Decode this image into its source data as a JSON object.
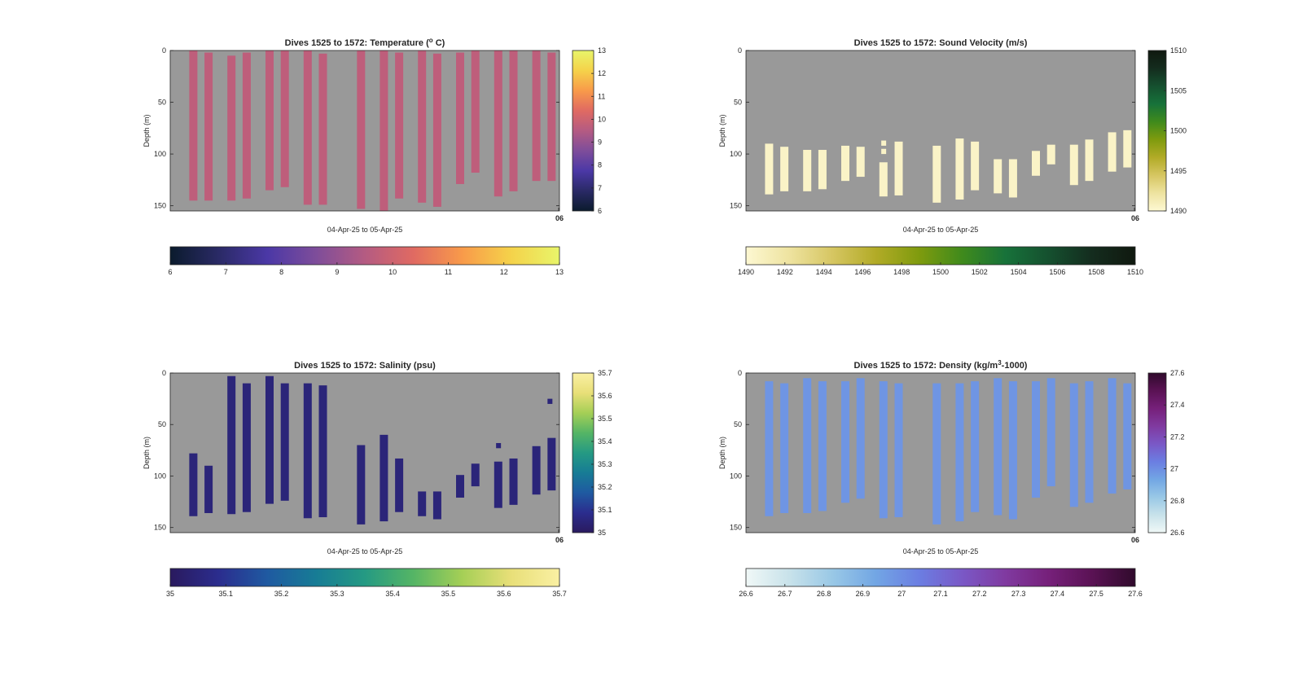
{
  "figure": {
    "background": "#ffffff",
    "plot_background": "#999999"
  },
  "chart_data": [
    {
      "type": "heatmap",
      "title": "Dives 1525 to 1572: Temperature (",
      "title_sup": "o",
      "title_tail": " C)",
      "ylabel": "Depth (m)",
      "xlabel": "04-Apr-25 to 05-Apr-25",
      "x_end_tick": "06",
      "ylim": [
        155,
        0
      ],
      "yticks": [
        0,
        50,
        100,
        150
      ],
      "clim": [
        6,
        13
      ],
      "cb_vertical_ticks": [
        "6",
        "7",
        "8",
        "9",
        "10",
        "11",
        "12",
        "13"
      ],
      "cb_horizontal_ticks": [
        "6",
        "7",
        "8",
        "9",
        "10",
        "11",
        "12",
        "13"
      ],
      "colormap": [
        "#0b1b2d",
        "#2a2a66",
        "#4b38a6",
        "#7e4d9a",
        "#b45b82",
        "#e06a62",
        "#f89a4a",
        "#f5d24a",
        "#e8f56a"
      ],
      "grid": false,
      "dives": [
        {
          "x": 0.05,
          "top": 0,
          "bottom": 145,
          "value": 9.7
        },
        {
          "x": 0.09,
          "top": 2,
          "bottom": 145,
          "value": 9.7
        },
        {
          "x": 0.15,
          "top": 5,
          "bottom": 145,
          "value": 9.7
        },
        {
          "x": 0.19,
          "top": 2,
          "bottom": 143,
          "value": 9.7
        },
        {
          "x": 0.25,
          "top": 0,
          "bottom": 135,
          "value": 9.7
        },
        {
          "x": 0.29,
          "top": 0,
          "bottom": 132,
          "value": 9.7
        },
        {
          "x": 0.35,
          "top": 0,
          "bottom": 149,
          "value": 9.7
        },
        {
          "x": 0.39,
          "top": 3,
          "bottom": 149,
          "value": 9.7
        },
        {
          "x": 0.49,
          "top": 0,
          "bottom": 153,
          "value": 9.7
        },
        {
          "x": 0.55,
          "top": 0,
          "bottom": 155,
          "value": 9.7
        },
        {
          "x": 0.59,
          "top": 2,
          "bottom": 143,
          "value": 9.7
        },
        {
          "x": 0.65,
          "top": 0,
          "bottom": 147,
          "value": 9.7
        },
        {
          "x": 0.69,
          "top": 3,
          "bottom": 151,
          "value": 9.7
        },
        {
          "x": 0.75,
          "top": 2,
          "bottom": 129,
          "value": 9.7
        },
        {
          "x": 0.79,
          "top": 0,
          "bottom": 118,
          "value": 9.7
        },
        {
          "x": 0.85,
          "top": 0,
          "bottom": 141,
          "value": 9.7
        },
        {
          "x": 0.89,
          "top": 0,
          "bottom": 136,
          "value": 9.7
        },
        {
          "x": 0.95,
          "top": 0,
          "bottom": 126,
          "value": 9.7
        },
        {
          "x": 0.99,
          "top": 2,
          "bottom": 126,
          "value": 9.7
        }
      ]
    },
    {
      "type": "heatmap",
      "title": "Dives 1525 to 1572: Sound Velocity (m/s)",
      "ylabel": "Depth (m)",
      "xlabel": "04-Apr-25 to 05-Apr-25",
      "x_end_tick": "06",
      "ylim": [
        155,
        0
      ],
      "yticks": [
        0,
        50,
        100,
        150
      ],
      "clim": [
        1490,
        1510
      ],
      "cb_vertical_ticks": [
        "1490",
        "1495",
        "1500",
        "1505",
        "1510"
      ],
      "cb_horizontal_ticks": [
        "1490",
        "1492",
        "1494",
        "1496",
        "1498",
        "1500",
        "1502",
        "1504",
        "1506",
        "1508",
        "1510"
      ],
      "colormap": [
        "#fdf8d2",
        "#eee3a0",
        "#d6c662",
        "#b2ab27",
        "#7f9b0e",
        "#3f8a1c",
        "#17723a",
        "#15502f",
        "#142c1e",
        "#10190f"
      ],
      "grid": false,
      "dives": [
        {
          "x": 0.05,
          "top": 90,
          "bottom": 139,
          "value": 1490.5
        },
        {
          "x": 0.09,
          "top": 93,
          "bottom": 136,
          "value": 1490.5
        },
        {
          "x": 0.15,
          "top": 96,
          "bottom": 136,
          "value": 1490.5
        },
        {
          "x": 0.19,
          "top": 96,
          "bottom": 134,
          "value": 1490.5
        },
        {
          "x": 0.25,
          "top": 92,
          "bottom": 126,
          "value": 1490.5
        },
        {
          "x": 0.29,
          "top": 93,
          "bottom": 122,
          "value": 1490.5
        },
        {
          "x": 0.35,
          "top": 108,
          "bottom": 141,
          "value": 1490.5
        },
        {
          "x": 0.39,
          "top": 88,
          "bottom": 140,
          "value": 1490.5
        },
        {
          "x": 0.49,
          "top": 92,
          "bottom": 147,
          "value": 1490.5
        },
        {
          "x": 0.55,
          "top": 85,
          "bottom": 144,
          "value": 1490.5
        },
        {
          "x": 0.59,
          "top": 88,
          "bottom": 135,
          "value": 1490.5
        },
        {
          "x": 0.65,
          "top": 105,
          "bottom": 138,
          "value": 1490.5
        },
        {
          "x": 0.69,
          "top": 105,
          "bottom": 142,
          "value": 1490.5
        },
        {
          "x": 0.75,
          "top": 97,
          "bottom": 121,
          "value": 1490.5
        },
        {
          "x": 0.79,
          "top": 91,
          "bottom": 110,
          "value": 1490.5
        },
        {
          "x": 0.85,
          "top": 91,
          "bottom": 130,
          "value": 1490.5
        },
        {
          "x": 0.89,
          "top": 86,
          "bottom": 126,
          "value": 1490.5
        },
        {
          "x": 0.95,
          "top": 79,
          "bottom": 117,
          "value": 1490.5
        },
        {
          "x": 0.99,
          "top": 77,
          "bottom": 113,
          "value": 1490.5
        }
      ],
      "spots": [
        {
          "x": 0.355,
          "top": 87,
          "bottom": 92,
          "value": 1490.5
        },
        {
          "x": 0.355,
          "top": 95,
          "bottom": 100,
          "value": 1490.5
        }
      ]
    },
    {
      "type": "heatmap",
      "title": "Dives 1525 to 1572: Salinity (psu)",
      "ylabel": "Depth (m)",
      "xlabel": "04-Apr-25 to 05-Apr-25",
      "x_end_tick": "06",
      "ylim": [
        155,
        0
      ],
      "yticks": [
        0,
        50,
        100,
        150
      ],
      "clim": [
        35,
        35.7
      ],
      "cb_vertical_ticks": [
        "35",
        "35.1",
        "35.2",
        "35.3",
        "35.4",
        "35.5",
        "35.6",
        "35.7"
      ],
      "cb_horizontal_ticks": [
        "35",
        "35.1",
        "35.2",
        "35.3",
        "35.4",
        "35.5",
        "35.6",
        "35.7"
      ],
      "colormap": [
        "#2a1a5e",
        "#2b2d8e",
        "#1f5aa1",
        "#177c95",
        "#259a83",
        "#55b565",
        "#a5cf56",
        "#e8df78",
        "#faf0a3"
      ],
      "grid": false,
      "dives": [
        {
          "x": 0.05,
          "top": 78,
          "bottom": 139,
          "value": 35.05
        },
        {
          "x": 0.09,
          "top": 90,
          "bottom": 136,
          "value": 35.05
        },
        {
          "x": 0.15,
          "top": 3,
          "bottom": 137,
          "value": 35.05
        },
        {
          "x": 0.19,
          "top": 10,
          "bottom": 135,
          "value": 35.05
        },
        {
          "x": 0.25,
          "top": 3,
          "bottom": 127,
          "value": 35.05
        },
        {
          "x": 0.29,
          "top": 10,
          "bottom": 124,
          "value": 35.05
        },
        {
          "x": 0.35,
          "top": 10,
          "bottom": 141,
          "value": 35.05
        },
        {
          "x": 0.39,
          "top": 12,
          "bottom": 140,
          "value": 35.05
        },
        {
          "x": 0.49,
          "top": 70,
          "bottom": 147,
          "value": 35.05
        },
        {
          "x": 0.55,
          "top": 60,
          "bottom": 144,
          "value": 35.05
        },
        {
          "x": 0.59,
          "top": 83,
          "bottom": 135,
          "value": 35.05
        },
        {
          "x": 0.65,
          "top": 115,
          "bottom": 139,
          "value": 35.05
        },
        {
          "x": 0.69,
          "top": 115,
          "bottom": 142,
          "value": 35.05
        },
        {
          "x": 0.75,
          "top": 99,
          "bottom": 121,
          "value": 35.05
        },
        {
          "x": 0.79,
          "top": 88,
          "bottom": 110,
          "value": 35.05
        },
        {
          "x": 0.85,
          "top": 86,
          "bottom": 131,
          "value": 35.05
        },
        {
          "x": 0.89,
          "top": 83,
          "bottom": 128,
          "value": 35.05
        },
        {
          "x": 0.95,
          "top": 71,
          "bottom": 118,
          "value": 35.05
        },
        {
          "x": 0.99,
          "top": 63,
          "bottom": 114,
          "value": 35.05
        }
      ],
      "spots": [
        {
          "x": 0.99,
          "top": 25,
          "bottom": 30,
          "value": 35.05
        },
        {
          "x": 0.855,
          "top": 68,
          "bottom": 73,
          "value": 35.05
        }
      ]
    },
    {
      "type": "heatmap",
      "title": "Dives 1525 to 1572: Density (kg/m",
      "title_sup": "3",
      "title_tail": "-1000)",
      "ylabel": "Depth (m)",
      "xlabel": "04-Apr-25 to 05-Apr-25",
      "x_end_tick": "06",
      "ylim": [
        155,
        0
      ],
      "yticks": [
        0,
        50,
        100,
        150
      ],
      "clim": [
        26.6,
        27.6
      ],
      "cb_vertical_ticks": [
        "26.6",
        "26.8",
        "27",
        "27.2",
        "27.4",
        "27.6"
      ],
      "cb_horizontal_ticks": [
        "26.6",
        "26.7",
        "26.8",
        "26.9",
        "27",
        "27.1",
        "27.2",
        "27.3",
        "27.4",
        "27.5",
        "27.6"
      ],
      "colormap": [
        "#f0f8f7",
        "#c8e2ea",
        "#99c8e6",
        "#72a6e4",
        "#6b7ee2",
        "#7a58c6",
        "#803aa0",
        "#76207a",
        "#5a1254",
        "#300a2c"
      ],
      "grid": false,
      "dives": [
        {
          "x": 0.05,
          "top": 8,
          "bottom": 139,
          "value": 26.98
        },
        {
          "x": 0.09,
          "top": 10,
          "bottom": 136,
          "value": 26.98
        },
        {
          "x": 0.15,
          "top": 5,
          "bottom": 136,
          "value": 26.98
        },
        {
          "x": 0.19,
          "top": 8,
          "bottom": 134,
          "value": 26.98
        },
        {
          "x": 0.25,
          "top": 8,
          "bottom": 126,
          "value": 26.98
        },
        {
          "x": 0.29,
          "top": 5,
          "bottom": 122,
          "value": 26.98
        },
        {
          "x": 0.35,
          "top": 8,
          "bottom": 141,
          "value": 26.98
        },
        {
          "x": 0.39,
          "top": 10,
          "bottom": 140,
          "value": 26.98
        },
        {
          "x": 0.49,
          "top": 10,
          "bottom": 147,
          "value": 26.98
        },
        {
          "x": 0.55,
          "top": 10,
          "bottom": 144,
          "value": 26.98
        },
        {
          "x": 0.59,
          "top": 8,
          "bottom": 135,
          "value": 26.98
        },
        {
          "x": 0.65,
          "top": 5,
          "bottom": 138,
          "value": 26.98
        },
        {
          "x": 0.69,
          "top": 8,
          "bottom": 142,
          "value": 26.98
        },
        {
          "x": 0.75,
          "top": 8,
          "bottom": 121,
          "value": 26.98
        },
        {
          "x": 0.79,
          "top": 5,
          "bottom": 110,
          "value": 26.98
        },
        {
          "x": 0.85,
          "top": 10,
          "bottom": 130,
          "value": 26.98
        },
        {
          "x": 0.89,
          "top": 8,
          "bottom": 126,
          "value": 26.98
        },
        {
          "x": 0.95,
          "top": 5,
          "bottom": 117,
          "value": 26.98
        },
        {
          "x": 0.99,
          "top": 10,
          "bottom": 113,
          "value": 26.98
        }
      ]
    }
  ]
}
